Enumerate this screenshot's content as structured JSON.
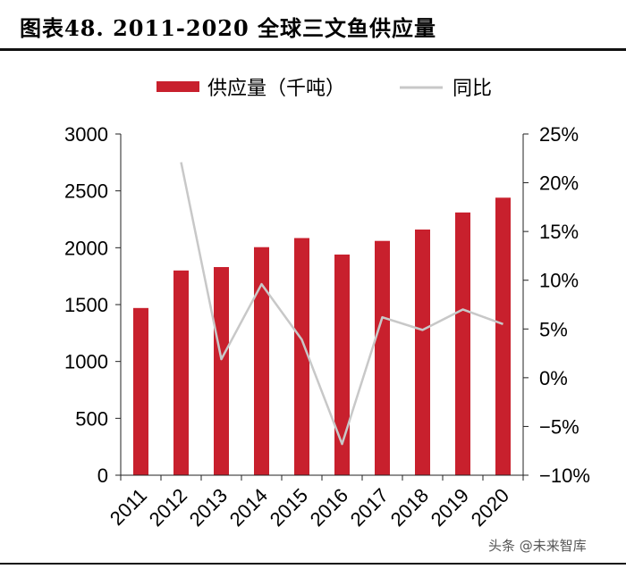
{
  "header": {
    "title": "图表48. 2011-2020 全球三文鱼供应量"
  },
  "watermark": {
    "text": "头条 @未来智库"
  },
  "colors": {
    "bar": "#c8202d",
    "line": "#c8c8c8",
    "axis": "#222222"
  },
  "chart_data": {
    "type": "bar",
    "title": "图表48. 2011-2020 全球三文鱼供应量",
    "categories": [
      "2011",
      "2012",
      "2013",
      "2014",
      "2015",
      "2016",
      "2017",
      "2018",
      "2019",
      "2020"
    ],
    "series": [
      {
        "name": "供应量（千吨）",
        "type": "bar",
        "axis": "left",
        "values": [
          1470,
          1800,
          1830,
          2005,
          2085,
          1940,
          2060,
          2160,
          2310,
          2440
        ]
      },
      {
        "name": "同比",
        "type": "line",
        "axis": "right",
        "unit": "%",
        "values": [
          null,
          22.1,
          1.9,
          9.6,
          3.9,
          -6.8,
          6.2,
          4.9,
          7.0,
          5.5
        ]
      }
    ],
    "ylim_left": [
      0,
      3000
    ],
    "yticks_left": [
      "3000",
      "2500",
      "2000",
      "1500",
      "1000",
      "500",
      "0"
    ],
    "ylim_right": [
      -10,
      25
    ],
    "yticks_right": [
      "25%",
      "20%",
      "15%",
      "10%",
      "5%",
      "0%",
      "−5%",
      "−10%"
    ],
    "legend": [
      "供应量（千吨）",
      "同比"
    ],
    "legend_position": "top"
  }
}
